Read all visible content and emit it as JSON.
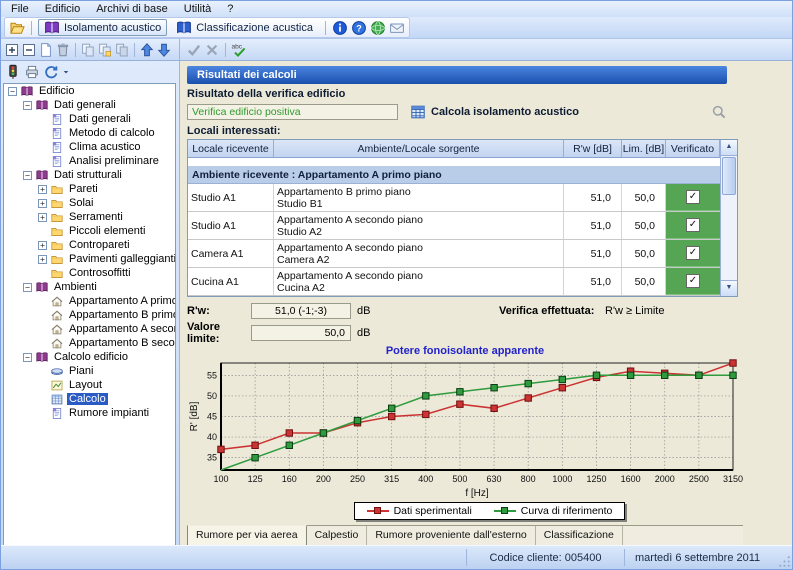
{
  "menu": {
    "items": [
      "File",
      "Edificio",
      "Archivi di base",
      "Utilità",
      "?"
    ]
  },
  "toolbar_main": {
    "buttons": [
      {
        "label": "Isolamento acustico",
        "active": true
      },
      {
        "label": "Classificazione acustica",
        "active": false
      }
    ]
  },
  "tree": {
    "items": [
      {
        "label": "Edificio",
        "level": 0,
        "icon": "book",
        "expander": "minus"
      },
      {
        "label": "Dati generali",
        "level": 1,
        "icon": "book",
        "expander": "minus"
      },
      {
        "label": "Dati generali",
        "level": 2,
        "icon": "doc",
        "expander": "none"
      },
      {
        "label": "Metodo di calcolo",
        "level": 2,
        "icon": "doc",
        "expander": "none"
      },
      {
        "label": "Clima acustico",
        "level": 2,
        "icon": "doc",
        "expander": "none"
      },
      {
        "label": "Analisi preliminare",
        "level": 2,
        "icon": "doc",
        "expander": "none"
      },
      {
        "label": "Dati strutturali",
        "level": 1,
        "icon": "book",
        "expander": "minus"
      },
      {
        "label": "Pareti",
        "level": 2,
        "icon": "folder",
        "expander": "plus"
      },
      {
        "label": "Solai",
        "level": 2,
        "icon": "folder",
        "expander": "plus"
      },
      {
        "label": "Serramenti",
        "level": 2,
        "icon": "folder",
        "expander": "plus"
      },
      {
        "label": "Piccoli elementi",
        "level": 2,
        "icon": "folder",
        "expander": "none"
      },
      {
        "label": "Contropareti",
        "level": 2,
        "icon": "folder",
        "expander": "plus"
      },
      {
        "label": "Pavimenti galleggianti",
        "level": 2,
        "icon": "folder",
        "expander": "plus"
      },
      {
        "label": "Controsoffitti",
        "level": 2,
        "icon": "folder",
        "expander": "none"
      },
      {
        "label": "Ambienti",
        "level": 1,
        "icon": "book",
        "expander": "minus"
      },
      {
        "label": "Appartamento A primo piano",
        "level": 2,
        "icon": "house",
        "expander": "none"
      },
      {
        "label": "Appartamento B primo piano",
        "level": 2,
        "icon": "house",
        "expander": "none"
      },
      {
        "label": "Appartamento A secondo piano",
        "level": 2,
        "icon": "house",
        "expander": "none"
      },
      {
        "label": "Appartamento B secondo piano",
        "level": 2,
        "icon": "house",
        "expander": "none"
      },
      {
        "label": "Calcolo edificio",
        "level": 1,
        "icon": "book",
        "expander": "minus"
      },
      {
        "label": "Piani",
        "level": 2,
        "icon": "piani",
        "expander": "none"
      },
      {
        "label": "Layout",
        "level": 2,
        "icon": "layout",
        "expander": "none"
      },
      {
        "label": "Calcolo",
        "level": 2,
        "icon": "grid",
        "expander": "none",
        "selected": true
      },
      {
        "label": "Rumore impianti",
        "level": 2,
        "icon": "doc",
        "expander": "none"
      }
    ]
  },
  "main": {
    "header_title": "Risultati dei calcoli",
    "result_label": "Risultato della verifica edificio",
    "result_value": "Verifica edificio positiva",
    "calc_button_label": "Calcola isolamento acustico",
    "locali_label": "Locali interessati:",
    "table": {
      "columns": [
        "Locale ricevente",
        "Ambiente/Locale sorgente",
        "R'w [dB]",
        "Lim. [dB]",
        "Verificato"
      ],
      "group_header": "Ambiente ricevente : Appartamento A primo piano",
      "rows": [
        {
          "locale": "Studio A1",
          "sorgente_line1": "Appartamento B primo piano",
          "sorgente_line2": "Studio B1",
          "rw": "51,0",
          "lim": "50,0",
          "verificato": true
        },
        {
          "locale": "Studio A1",
          "sorgente_line1": "Appartamento A secondo piano",
          "sorgente_line2": "Studio A2",
          "rw": "51,0",
          "lim": "50,0",
          "verificato": true
        },
        {
          "locale": "Camera A1",
          "sorgente_line1": "Appartamento A secondo piano",
          "sorgente_line2": "Camera A2",
          "rw": "51,0",
          "lim": "50,0",
          "verificato": true
        },
        {
          "locale": "Cucina A1",
          "sorgente_line1": "Appartamento A secondo piano",
          "sorgente_line2": "Cucina A2",
          "rw": "51,0",
          "lim": "50,0",
          "verificato": true
        }
      ]
    },
    "rw_label": "R'w:",
    "rw_value": "51,0 (-1;-3)",
    "rw_unit": "dB",
    "limit_label": "Valore limite:",
    "limit_value": "50,0",
    "limit_unit": "dB",
    "verifica_label": "Verifica effettuata:",
    "verifica_formula": "R'w ≥ Limite"
  },
  "chart_data": {
    "type": "line",
    "title": "Potere fonoisolante apparente",
    "xlabel": "f [Hz]",
    "ylabel": "R' [dB]",
    "categories": [
      100,
      125,
      160,
      200,
      250,
      315,
      400,
      500,
      630,
      800,
      1000,
      1250,
      1600,
      2000,
      2500,
      3150
    ],
    "series": [
      {
        "name": "Dati sperimentali",
        "color": "#cc3333",
        "marker_border": "#701010",
        "values": [
          37,
          38,
          41,
          41,
          43.5,
          45,
          45.5,
          48,
          47,
          49.5,
          52,
          54.5,
          56,
          55.5,
          55,
          58
        ]
      },
      {
        "name": "Curva di riferimento",
        "color": "#2e9b3e",
        "marker_border": "#0c3d12",
        "values": [
          32,
          35,
          38,
          41,
          44,
          47,
          50,
          51,
          52,
          53,
          54,
          55,
          55,
          55,
          55,
          55
        ]
      }
    ],
    "ylim": [
      32,
      58
    ],
    "yticks": [
      35,
      40,
      45,
      50,
      55
    ],
    "grid": true,
    "legend_position": "bottom"
  },
  "tabs": {
    "items": [
      {
        "label": "Rumore per via aerea",
        "active": true
      },
      {
        "label": "Calpestio",
        "active": false
      },
      {
        "label": "Rumore proveniente dall'esterno",
        "active": false
      },
      {
        "label": "Classificazione",
        "active": false
      }
    ]
  },
  "statusbar": {
    "client_code": "Codice cliente: 005400",
    "date": "martedì 6 settembre 2011"
  },
  "colors": {
    "panel_bg": "#ece9d8",
    "header_bar_blue": "#1b4fae",
    "verified_green": "#55a555",
    "selection_blue": "#2a5ac4",
    "result_text_green": "#2f9a2f",
    "chart_title_blue": "#2222cc",
    "series_red": "#cc3333",
    "series_green": "#2e9b3e"
  }
}
